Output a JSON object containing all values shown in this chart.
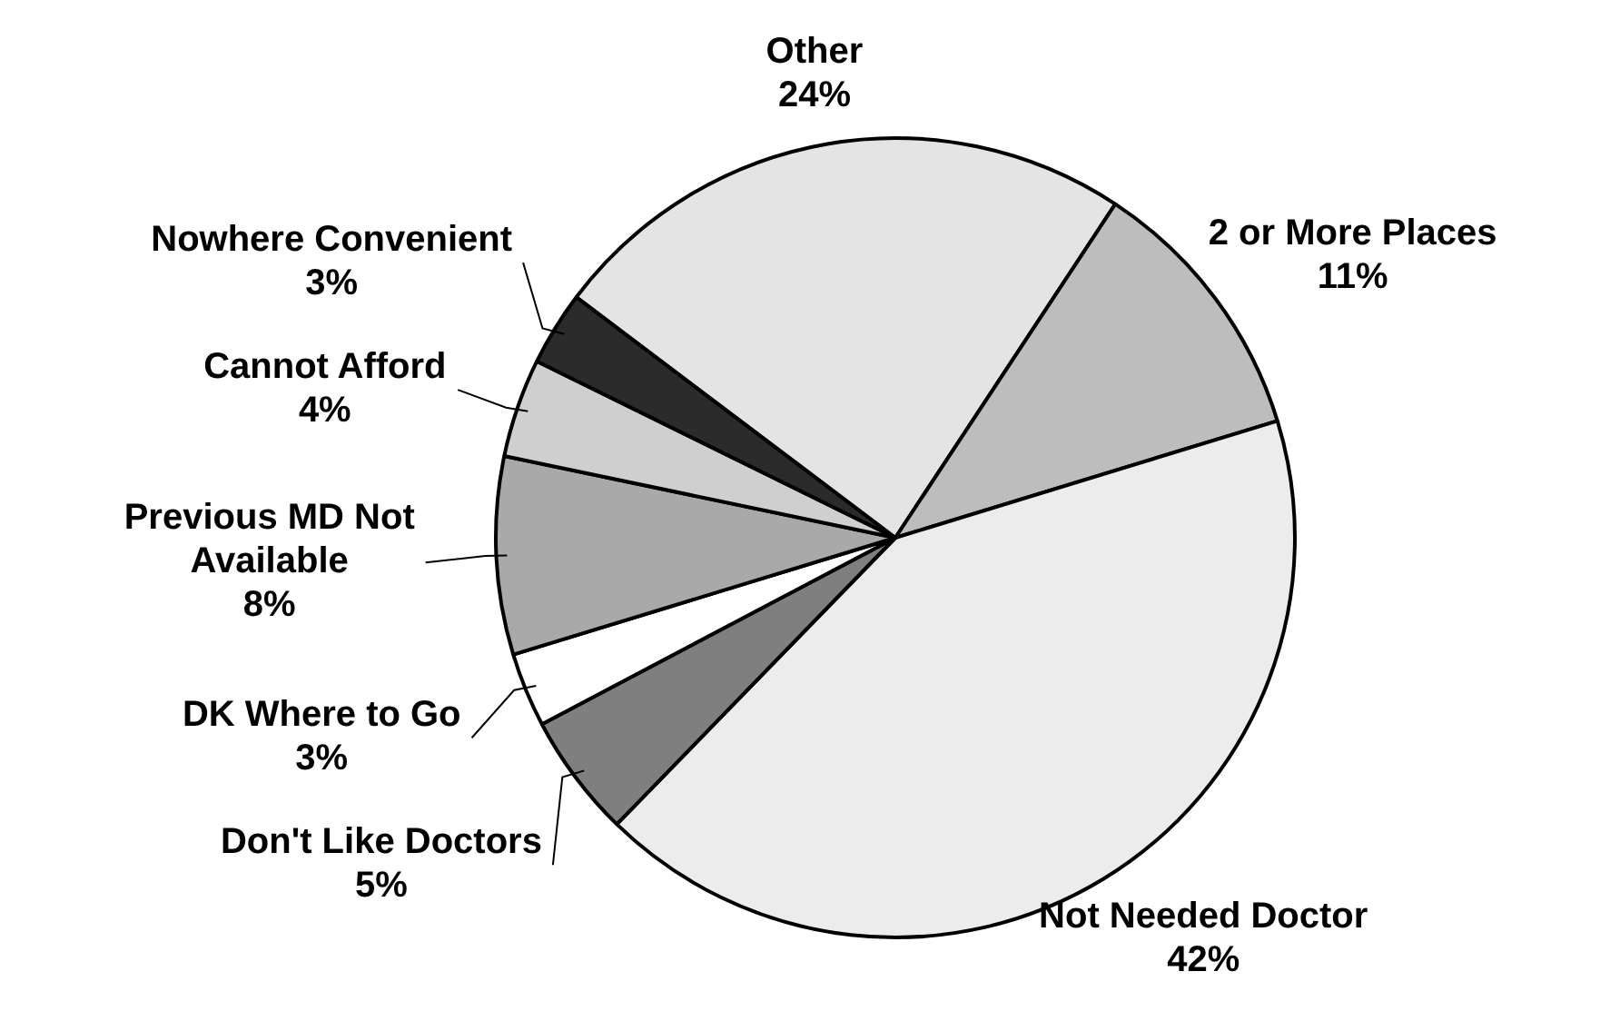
{
  "chart_data": {
    "type": "pie",
    "categories": [
      "Other",
      "2 or More Places",
      "Not Needed Doctor",
      "Don't Like Doctors",
      "DK Where to Go",
      "Previous MD Not Available",
      "Cannot Afford",
      "Nowhere Convenient"
    ],
    "values": [
      24,
      11,
      42,
      5,
      3,
      8,
      4,
      3
    ],
    "colors": [
      "#e4e4e4",
      "#bdbdbd",
      "#ececec",
      "#7f7f7f",
      "#ffffff",
      "#a9a9a9",
      "#cfcfcf",
      "#2b2b2b"
    ],
    "value_labels": [
      "24%",
      "11%",
      "42%",
      "5%",
      "3%",
      "8%",
      "4%",
      "3%"
    ],
    "legend": false
  }
}
